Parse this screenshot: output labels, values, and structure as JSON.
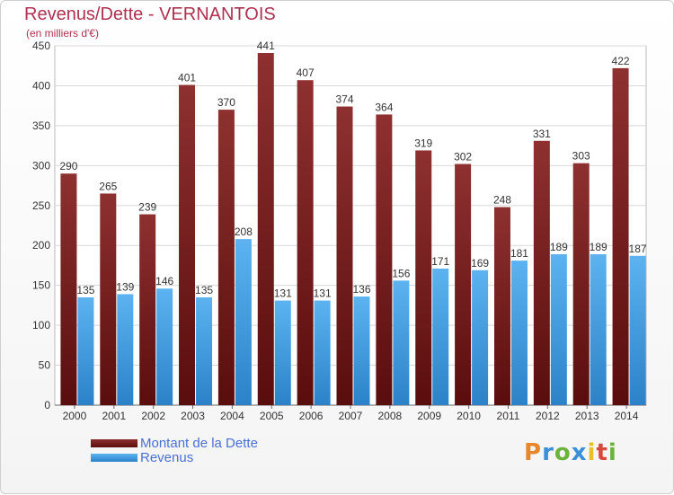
{
  "header": {
    "title": "Revenus/Dette - VERNANTOIS",
    "subtitle": "(en milliers d'€)"
  },
  "chart_data": {
    "type": "bar",
    "title": "Revenus/Dette - VERNANTOIS",
    "subtitle": "(en milliers d'€)",
    "xlabel": "",
    "ylabel": "",
    "ylim": [
      0,
      450
    ],
    "yticks": [
      0,
      50,
      100,
      150,
      200,
      250,
      300,
      350,
      400,
      450
    ],
    "grid": true,
    "legend_position": "bottom-left",
    "categories": [
      "2000",
      "2001",
      "2002",
      "2003",
      "2004",
      "2005",
      "2006",
      "2007",
      "2008",
      "2009",
      "2010",
      "2011",
      "2012",
      "2013",
      "2014"
    ],
    "series": [
      {
        "name": "Montant de la Dette",
        "color": "#7a2424",
        "values": [
          290,
          265,
          239,
          401,
          370,
          441,
          407,
          374,
          364,
          319,
          302,
          248,
          331,
          303,
          422
        ]
      },
      {
        "name": "Revenus",
        "color": "#4aa3e8",
        "values": [
          135,
          139,
          146,
          135,
          208,
          131,
          131,
          136,
          156,
          171,
          169,
          181,
          189,
          189,
          187
        ]
      }
    ]
  },
  "legend": {
    "items": [
      {
        "label": "Montant de la Dette",
        "color": "#6b1a1a"
      },
      {
        "label": "Revenus",
        "color": "#3d9be6"
      }
    ]
  },
  "brand": {
    "letters": [
      "P",
      "r",
      "o",
      "x",
      "i",
      "t",
      "i"
    ],
    "colors": [
      "#e8862a",
      "#3b8fd8",
      "#6cb33e",
      "#3b8fd8",
      "#e8c12a",
      "#d8483b",
      "#6cb33e"
    ]
  }
}
